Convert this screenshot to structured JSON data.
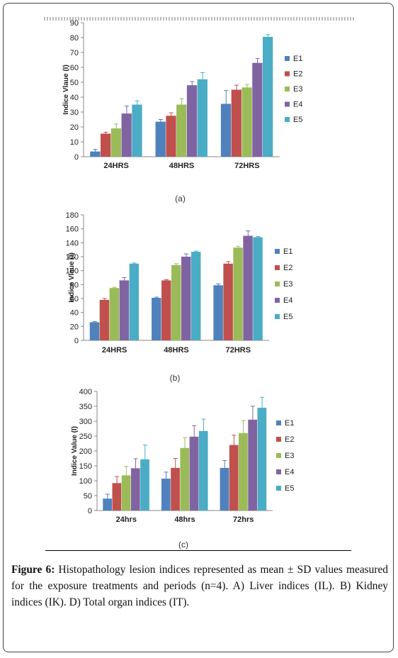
{
  "caption": {
    "label": "Figure 6:",
    "text": "Histopathology lesion indices represented as mean ± SD values measured for the exposure treatments and periods (n=4). A) Liver indices (IL). B) Kidney indices (IK). D) Total organ indices (IT)."
  },
  "colors": [
    "#4f81bd",
    "#c0504d",
    "#9bbb59",
    "#8064a2",
    "#4bacc6"
  ],
  "chart_data": [
    {
      "type": "bar",
      "panel_label": "(a)",
      "ylabel": "Indice Vlaue (I)",
      "categories": [
        "24HRS",
        "48HRS",
        "72HRS"
      ],
      "ylim": [
        0,
        90
      ],
      "yticks": [
        0,
        10,
        20,
        30,
        40,
        50,
        60,
        70,
        80,
        90
      ],
      "legend_position": "right",
      "series": [
        {
          "name": "E1",
          "values": [
            3.5,
            23.5,
            35.5
          ],
          "errors": [
            1.5,
            1.5,
            9
          ]
        },
        {
          "name": "E2",
          "values": [
            15.5,
            27.5,
            45
          ],
          "errors": [
            1,
            2,
            3
          ]
        },
        {
          "name": "E3",
          "values": [
            19,
            35,
            46.5
          ],
          "errors": [
            3,
            4,
            2
          ]
        },
        {
          "name": "E4",
          "values": [
            29,
            48,
            63
          ],
          "errors": [
            5,
            2.5,
            3
          ]
        },
        {
          "name": "E5",
          "values": [
            35,
            52,
            80.5
          ],
          "errors": [
            2.5,
            4.5,
            1.5
          ]
        }
      ]
    },
    {
      "type": "bar",
      "panel_label": "(b)",
      "ylabel": "Indice Vlaue (I)",
      "categories": [
        "24HRS",
        "48HRS",
        "72HRS"
      ],
      "ylim": [
        0,
        180
      ],
      "yticks": [
        0,
        20,
        40,
        60,
        80,
        100,
        120,
        140,
        160,
        180
      ],
      "legend_position": "right",
      "series": [
        {
          "name": "E1",
          "values": [
            26,
            61,
            79
          ],
          "errors": [
            1,
            1,
            2
          ]
        },
        {
          "name": "E2",
          "values": [
            58,
            86,
            110
          ],
          "errors": [
            2,
            1,
            3
          ]
        },
        {
          "name": "E3",
          "values": [
            75,
            108,
            133
          ],
          "errors": [
            1,
            2,
            2
          ]
        },
        {
          "name": "E4",
          "values": [
            86,
            120,
            150
          ],
          "errors": [
            4,
            4,
            7
          ]
        },
        {
          "name": "E5",
          "values": [
            110,
            127,
            148
          ],
          "errors": [
            1,
            1,
            1
          ]
        }
      ]
    },
    {
      "type": "bar",
      "panel_label": "(c)",
      "ylabel": "Indice Value (I)",
      "categories": [
        "24hrs",
        "48hrs",
        "72hrs"
      ],
      "ylim": [
        0,
        400
      ],
      "yticks": [
        0,
        50,
        100,
        150,
        200,
        250,
        300,
        350,
        400
      ],
      "legend_position": "right",
      "series": [
        {
          "name": "E1",
          "values": [
            40,
            107,
            143
          ],
          "errors": [
            15,
            22,
            25
          ]
        },
        {
          "name": "E2",
          "values": [
            92,
            143,
            220
          ],
          "errors": [
            22,
            32,
            33
          ]
        },
        {
          "name": "E3",
          "values": [
            118,
            210,
            260
          ],
          "errors": [
            30,
            35,
            42
          ]
        },
        {
          "name": "E4",
          "values": [
            142,
            248,
            305
          ],
          "errors": [
            32,
            37,
            45
          ]
        },
        {
          "name": "E5",
          "values": [
            172,
            267,
            345
          ],
          "errors": [
            48,
            40,
            35
          ]
        }
      ]
    }
  ]
}
